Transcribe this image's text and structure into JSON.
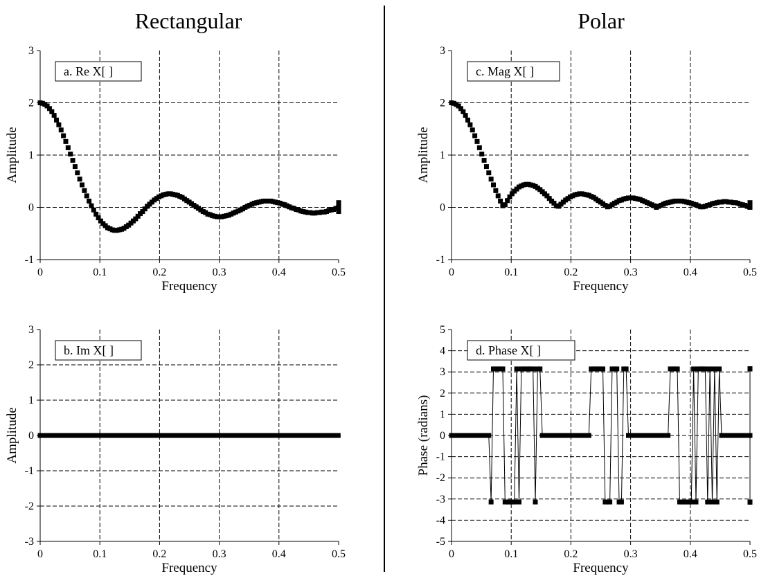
{
  "headings": {
    "left": "Rectangular",
    "right": "Polar"
  },
  "chart_data": [
    {
      "id": "a",
      "type": "scatter",
      "box_label": "a.  Re X[ ]",
      "xlabel": "Frequency",
      "ylabel": "Amplitude",
      "xlim": [
        0,
        0.5
      ],
      "ylim": [
        -1,
        3
      ],
      "xticks": [
        "0",
        "0.1",
        "0.2",
        "0.3",
        "0.4",
        "0.5"
      ],
      "yticks": [
        "-1",
        "0",
        "1",
        "2",
        "3"
      ],
      "grid": true,
      "marker": "square",
      "connect_line": false,
      "x_step": 0.0039,
      "y": [
        2.0,
        1.99,
        1.97,
        1.94,
        1.89,
        1.83,
        1.76,
        1.67,
        1.58,
        1.48,
        1.37,
        1.26,
        1.14,
        1.02,
        0.9,
        0.78,
        0.66,
        0.54,
        0.43,
        0.32,
        0.22,
        0.12,
        0.03,
        -0.05,
        -0.13,
        -0.2,
        -0.26,
        -0.31,
        -0.35,
        -0.39,
        -0.41,
        -0.43,
        -0.44,
        -0.44,
        -0.43,
        -0.42,
        -0.4,
        -0.37,
        -0.34,
        -0.3,
        -0.26,
        -0.22,
        -0.17,
        -0.12,
        -0.08,
        -0.03,
        0.02,
        0.06,
        0.1,
        0.14,
        0.17,
        0.2,
        0.22,
        0.24,
        0.25,
        0.26,
        0.26,
        0.25,
        0.24,
        0.23,
        0.21,
        0.19,
        0.16,
        0.13,
        0.1,
        0.07,
        0.04,
        0.01,
        -0.02,
        -0.05,
        -0.08,
        -0.1,
        -0.13,
        -0.14,
        -0.16,
        -0.17,
        -0.18,
        -0.18,
        -0.18,
        -0.17,
        -0.16,
        -0.15,
        -0.13,
        -0.11,
        -0.09,
        -0.07,
        -0.05,
        -0.03,
        0.0,
        0.02,
        0.04,
        0.06,
        0.08,
        0.09,
        0.1,
        0.11,
        0.12,
        0.12,
        0.12,
        0.12,
        0.11,
        0.1,
        0.09,
        0.08,
        0.06,
        0.05,
        0.03,
        0.01,
        -0.01,
        -0.02,
        -0.04,
        -0.05,
        -0.07,
        -0.08,
        -0.09,
        -0.1,
        -0.1,
        -0.11,
        -0.11,
        -0.1,
        -0.1,
        -0.09,
        -0.09,
        -0.08,
        -0.06,
        -0.05,
        -0.04,
        -0.02,
        -0.01,
        0.01,
        0.02,
        0.04,
        0.05,
        0.06,
        0.07,
        0.08,
        0.08,
        0.08,
        0.09,
        0.08,
        0.08,
        0.07,
        0.07,
        0.06,
        0.05,
        0.04,
        0.02,
        0.01,
        0.0,
        -0.01,
        -0.03,
        -0.04,
        -0.05,
        -0.06,
        -0.07,
        -0.07,
        -0.07,
        -0.08,
        -0.07,
        -0.07,
        -0.07,
        -0.06,
        -0.05,
        -0.04,
        -0.03,
        -0.02,
        -0.01,
        0.0,
        0.01,
        0.02,
        0.03,
        0.04,
        0.05,
        0.06,
        0.06,
        0.06,
        0.06,
        0.06,
        0.06,
        0.05,
        0.05,
        0.04,
        0.03,
        0.02,
        0.01,
        0.0,
        -0.01,
        -0.02,
        -0.03,
        -0.04,
        -0.05,
        -0.05,
        -0.06,
        -0.06,
        -0.06,
        -0.06,
        -0.05,
        -0.05,
        -0.04,
        -0.04,
        -0.03,
        -0.02,
        -0.01,
        0.0,
        0.01,
        0.02,
        0.03,
        0.04,
        0.04,
        0.05,
        0.05,
        0.05,
        0.05,
        0.05,
        0.05,
        0.04,
        0.04,
        0.03,
        0.02,
        0.01,
        0.0,
        -0.01,
        -0.01,
        -0.02,
        -0.03,
        -0.04,
        -0.04,
        -0.05,
        -0.05,
        -0.05,
        -0.05,
        -0.05,
        -0.04,
        -0.04,
        -0.03,
        -0.02,
        -0.02,
        -0.01,
        0.0,
        0.01,
        0.02,
        0.02,
        0.03,
        0.04,
        0.04,
        0.04,
        0.04,
        0.04,
        0.04,
        0.04,
        0.04,
        0.03,
        0.03,
        0.02,
        0.01,
        0.0,
        0.0,
        -0.01,
        -0.02,
        -0.03,
        -0.03,
        -0.04,
        -0.04,
        -0.04,
        -0.04,
        -0.04,
        -0.04,
        -0.04,
        -0.03,
        -0.02,
        -0.02,
        -0.01,
        0.0,
        0.01,
        0.02,
        0.02,
        0.03,
        0.03,
        0.04
      ]
    },
    {
      "id": "b",
      "type": "scatter",
      "box_label": "b.  Im X[ ]",
      "xlabel": "Frequency",
      "ylabel": "Amplitude",
      "xlim": [
        0,
        0.5
      ],
      "ylim": [
        -3,
        3
      ],
      "xticks": [
        "0",
        "0.1",
        "0.2",
        "0.3",
        "0.4",
        "0.5"
      ],
      "yticks": [
        "-3",
        "-2",
        "-1",
        "0",
        "1",
        "2",
        "3"
      ],
      "grid": true,
      "marker": "square",
      "connect_line": false,
      "x_step": 0.0039,
      "y_constant": 0
    },
    {
      "id": "c",
      "type": "scatter",
      "box_label": "c.  Mag X[ ]",
      "xlabel": "Frequency",
      "ylabel": "Amplitude",
      "xlim": [
        0,
        0.5
      ],
      "ylim": [
        -1,
        3
      ],
      "xticks": [
        "0",
        "0.1",
        "0.2",
        "0.3",
        "0.4",
        "0.5"
      ],
      "yticks": [
        "-1",
        "0",
        "1",
        "2",
        "3"
      ],
      "grid": true,
      "marker": "square",
      "connect_line": false,
      "x_step": 0.0039,
      "y": [
        2.0,
        1.99,
        1.97,
        1.94,
        1.89,
        1.83,
        1.76,
        1.67,
        1.58,
        1.48,
        1.37,
        1.26,
        1.14,
        1.02,
        0.9,
        0.78,
        0.66,
        0.54,
        0.43,
        0.32,
        0.22,
        0.12,
        0.03,
        0.05,
        0.13,
        0.2,
        0.26,
        0.31,
        0.35,
        0.39,
        0.41,
        0.43,
        0.44,
        0.44,
        0.43,
        0.42,
        0.4,
        0.37,
        0.34,
        0.3,
        0.26,
        0.22,
        0.17,
        0.12,
        0.08,
        0.03,
        0.02,
        0.06,
        0.1,
        0.14,
        0.17,
        0.2,
        0.22,
        0.24,
        0.25,
        0.26,
        0.26,
        0.25,
        0.24,
        0.23,
        0.21,
        0.19,
        0.16,
        0.13,
        0.1,
        0.07,
        0.04,
        0.01,
        0.02,
        0.05,
        0.08,
        0.1,
        0.13,
        0.14,
        0.16,
        0.17,
        0.18,
        0.18,
        0.18,
        0.17,
        0.16,
        0.15,
        0.13,
        0.11,
        0.09,
        0.07,
        0.05,
        0.03,
        0.0,
        0.02,
        0.04,
        0.06,
        0.08,
        0.09,
        0.1,
        0.11,
        0.12,
        0.12,
        0.12,
        0.12,
        0.11,
        0.1,
        0.09,
        0.08,
        0.06,
        0.05,
        0.03,
        0.01,
        0.01,
        0.02,
        0.04,
        0.05,
        0.07,
        0.08,
        0.09,
        0.1,
        0.1,
        0.11,
        0.11,
        0.1,
        0.1,
        0.09,
        0.09,
        0.08,
        0.06,
        0.05,
        0.04,
        0.02,
        0.01,
        0.01,
        0.02,
        0.04,
        0.05,
        0.06,
        0.07,
        0.08,
        0.08,
        0.08,
        0.09,
        0.08,
        0.08,
        0.07,
        0.07,
        0.06,
        0.05,
        0.04,
        0.02,
        0.01,
        0.0,
        0.01,
        0.03,
        0.04,
        0.05,
        0.06,
        0.07,
        0.07,
        0.07,
        0.08,
        0.07,
        0.07,
        0.07,
        0.06,
        0.05,
        0.04,
        0.03,
        0.02,
        0.01,
        0.0,
        0.01,
        0.02,
        0.03,
        0.04,
        0.05,
        0.06,
        0.06,
        0.06,
        0.06,
        0.06,
        0.06,
        0.05,
        0.05,
        0.04,
        0.03,
        0.02,
        0.01,
        0.0,
        0.01,
        0.02,
        0.03,
        0.04,
        0.05,
        0.05,
        0.06,
        0.06,
        0.06,
        0.06,
        0.05,
        0.05,
        0.04,
        0.04,
        0.03,
        0.02,
        0.01,
        0.0,
        0.01,
        0.02,
        0.03,
        0.04,
        0.04,
        0.05,
        0.05,
        0.05,
        0.05,
        0.05,
        0.05,
        0.04,
        0.04,
        0.03,
        0.02,
        0.01,
        0.0,
        0.01,
        0.01,
        0.02,
        0.03,
        0.04,
        0.04,
        0.05,
        0.05,
        0.05,
        0.05,
        0.05,
        0.04,
        0.04,
        0.03,
        0.02,
        0.02,
        0.01,
        0.0,
        0.01,
        0.02,
        0.02,
        0.03,
        0.04,
        0.04,
        0.04,
        0.04,
        0.04,
        0.04,
        0.04,
        0.04,
        0.03,
        0.03,
        0.02,
        0.01,
        0.0,
        0.0,
        0.01,
        0.02,
        0.03,
        0.03,
        0.04,
        0.04,
        0.04,
        0.04,
        0.04,
        0.04,
        0.04,
        0.03,
        0.02,
        0.02,
        0.01,
        0.0,
        0.01,
        0.02,
        0.02,
        0.03,
        0.03,
        0.04
      ]
    },
    {
      "id": "d",
      "type": "line",
      "box_label": "d.  Phase X[ ]",
      "xlabel": "Frequency",
      "ylabel": "Phase (radians)",
      "xlim": [
        0,
        0.5
      ],
      "ylim": [
        -5,
        5
      ],
      "xticks": [
        "0",
        "0.1",
        "0.2",
        "0.3",
        "0.4",
        "0.5"
      ],
      "yticks": [
        "-5",
        "-4",
        "-3",
        "-2",
        "-1",
        "0",
        "1",
        "2",
        "3",
        "4",
        "5"
      ],
      "grid": true,
      "marker": "square",
      "connect_line": true,
      "x_step": 0.0039,
      "y_level": 3.14159,
      "y": [
        0,
        0,
        0,
        0,
        0,
        0,
        0,
        0,
        0,
        0,
        0,
        0,
        0,
        0,
        0,
        0,
        0,
        -3.14,
        3.14,
        3.14,
        3.14,
        3.14,
        3.14,
        -3.14,
        -3.14,
        -3.14,
        -3.14,
        -3.14,
        3.14,
        -3.14,
        3.14,
        3.14,
        3.14,
        3.14,
        3.14,
        3.14,
        -3.14,
        3.14,
        3.14,
        0,
        0,
        0,
        0,
        0,
        0,
        0,
        0,
        0,
        0,
        0,
        0,
        0,
        0,
        0,
        0,
        0,
        0,
        0,
        0,
        0,
        3.14,
        3.14,
        3.14,
        3.14,
        3.14,
        3.14,
        -3.14,
        -3.14,
        -3.14,
        3.14,
        3.14,
        3.14,
        -3.14,
        -3.14,
        3.14,
        3.14,
        0,
        0,
        0,
        0,
        0,
        0,
        0,
        0,
        0,
        0,
        0,
        0,
        0,
        0,
        0,
        0,
        0,
        0,
        3.14,
        3.14,
        3.14,
        3.14,
        -3.14,
        -3.14,
        -3.14,
        -3.14,
        -3.14,
        -3.14,
        3.14,
        -3.14,
        3.14,
        3.14,
        3.14,
        3.14,
        -3.14,
        3.14,
        -3.14,
        3.14,
        -3.14,
        3.14,
        0,
        0,
        0,
        0,
        0,
        0,
        0,
        0,
        0,
        0,
        0,
        0,
        0,
        0,
        0,
        3.14,
        3.14,
        3.14,
        3.14,
        -3.14,
        -3.14,
        -3.14,
        -3.14,
        3.14,
        -3.14,
        -3.14,
        3.14,
        -3.14,
        3.14,
        3.14,
        3.14,
        3.14,
        -3.14,
        -3.14,
        -3.14,
        3.14,
        3.14,
        0,
        0
      ]
    }
  ]
}
